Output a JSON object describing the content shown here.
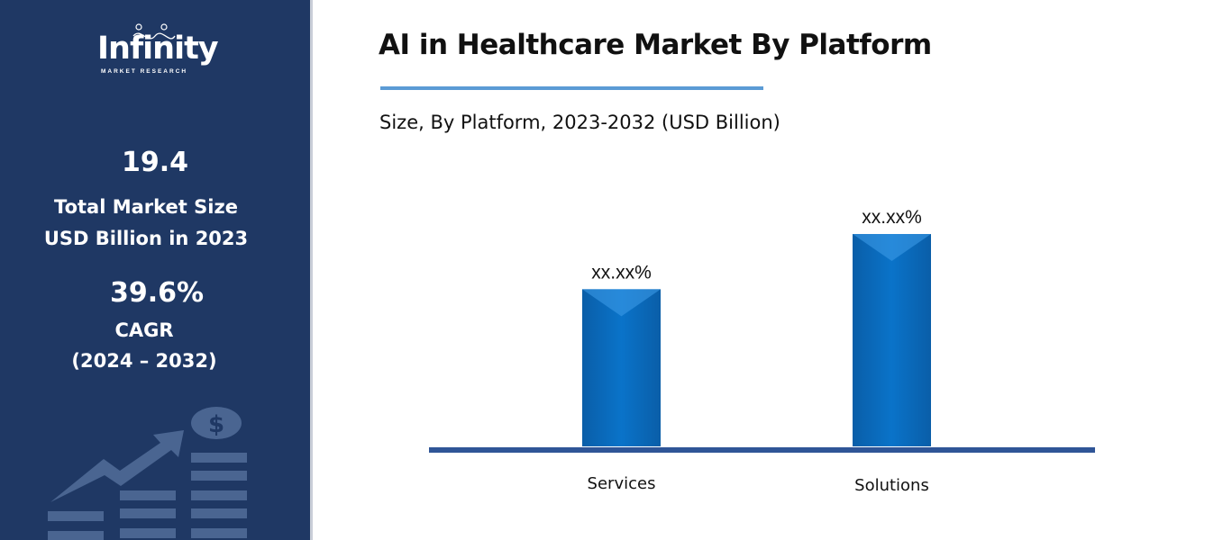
{
  "sidebar": {
    "logo": {
      "name": "Infinity",
      "tagline": "MARKET RESEARCH"
    },
    "market_size_value": "19.4",
    "market_size_label_1": "Total Market Size",
    "market_size_label_2": "USD Billion in 2023",
    "cagr_value": "39.6%",
    "cagr_label": "CAGR",
    "cagr_period": "(2024 – 2032)",
    "decor_icon": "growth-chart-dollar-icon"
  },
  "colors": {
    "sidebar": "#1f3864",
    "bar": "#0a6fc2",
    "axis": "#2f5597",
    "accent_line": "#5b9bd5"
  },
  "chart_data": {
    "type": "bar",
    "title": "AI in Healthcare Market By Platform",
    "subtitle": "Size, By Platform, 2023-2032 (USD Billion)",
    "categories": [
      "Services",
      "Solutions"
    ],
    "values_relative": [
      0.74,
      1.0
    ],
    "data_labels": [
      "xx.xx%",
      "xx.xx%"
    ],
    "xlabel": "",
    "ylabel": "",
    "grid": false
  }
}
